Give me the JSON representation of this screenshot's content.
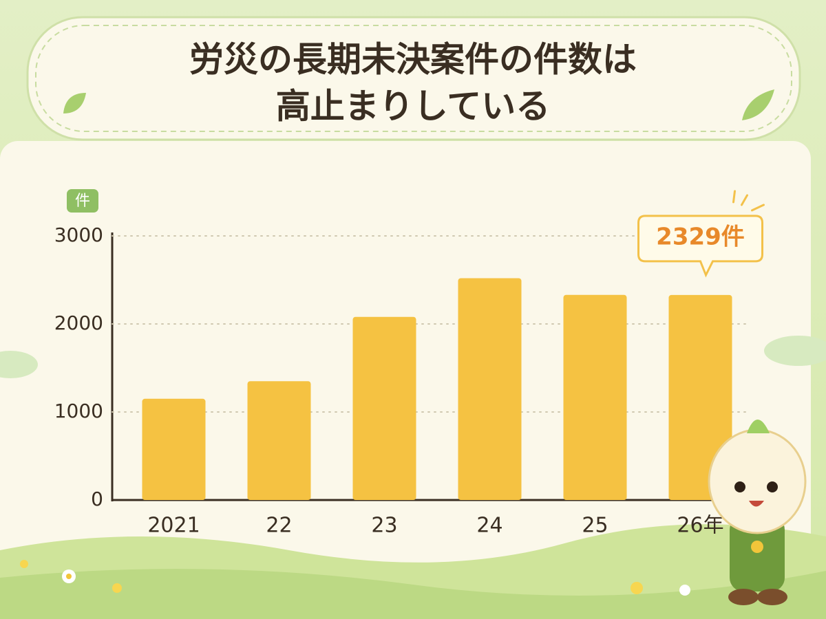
{
  "chart_data": {
    "type": "bar",
    "title": [
      "労災の長期未決案件の件数は",
      "高止まりしている"
    ],
    "y_label": "件",
    "categories": [
      "2021",
      "22",
      "23",
      "24",
      "25",
      "26年"
    ],
    "values": [
      1150,
      1350,
      2080,
      2520,
      2330,
      2329
    ],
    "value_labels": [
      null,
      null,
      null,
      null,
      null,
      "2329件"
    ],
    "color": "#f5c242",
    "ylim": [
      0,
      3000
    ],
    "yticks": [
      0,
      1000,
      2000,
      3000
    ],
    "grid": true
  }
}
